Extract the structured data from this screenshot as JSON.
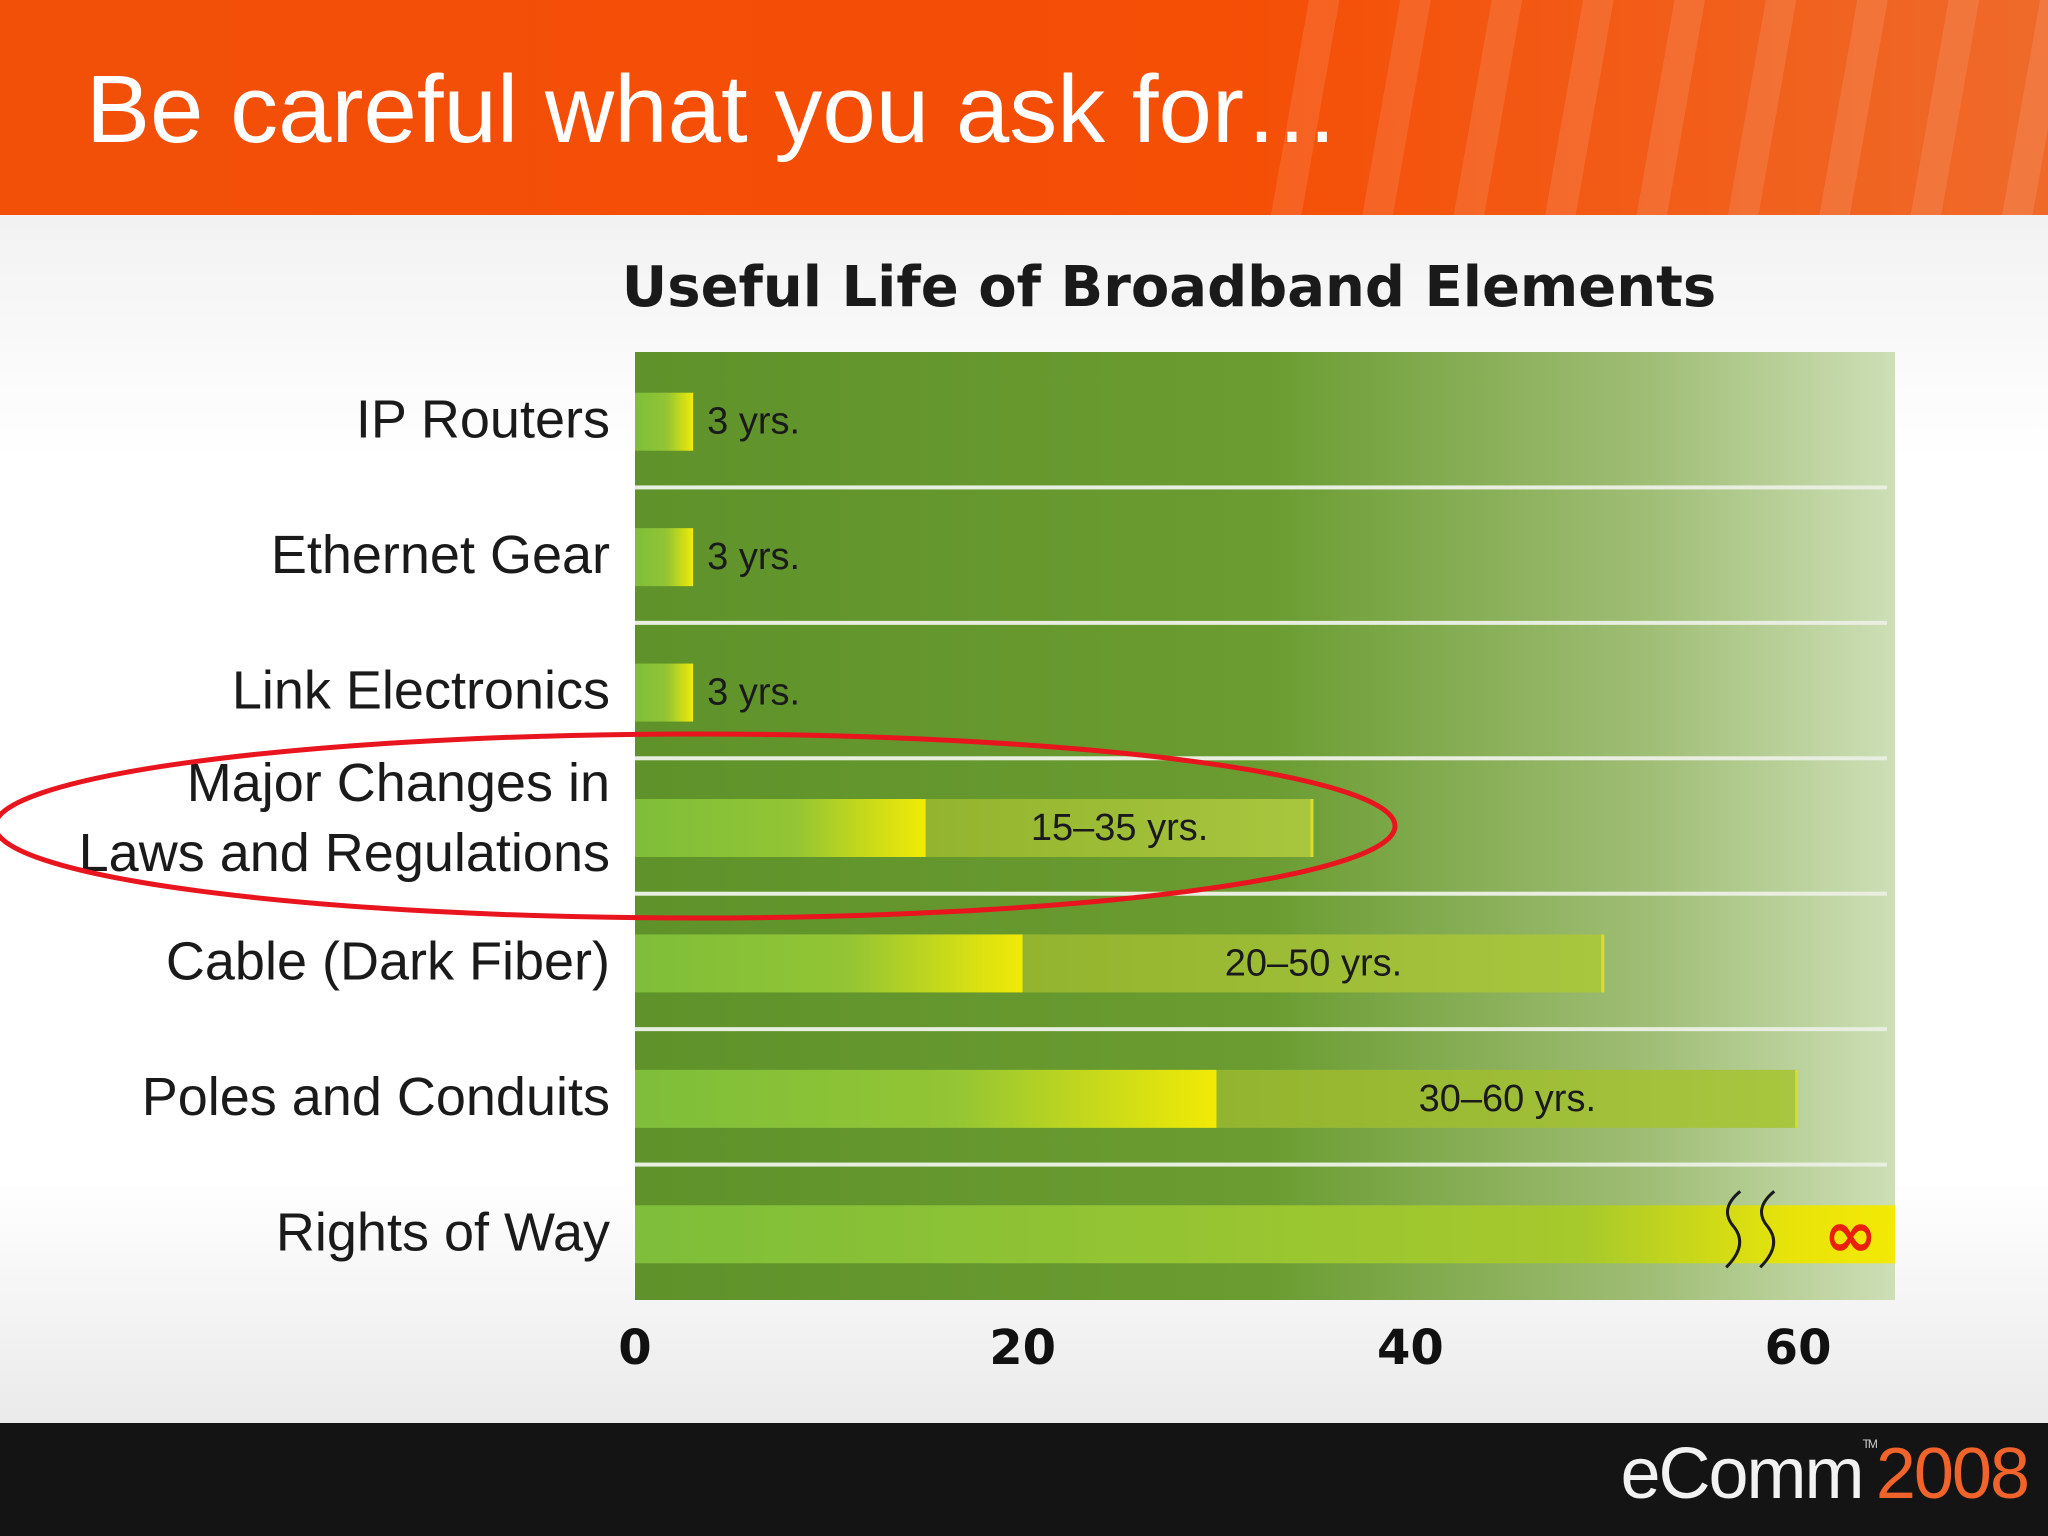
{
  "slide": {
    "title": "Be careful what you ask for…",
    "footer_logo_a": "eComm",
    "footer_logo_tm": "TM",
    "footer_logo_b": "2008"
  },
  "colors": {
    "header_orange": "#f54e05",
    "plot_green": "#64962d",
    "bar_green": "#7fbe3a",
    "bar_yellow": "#f0ea08",
    "range_green": "#99b833",
    "highlight_red": "#e8141e",
    "infinity_red": "#e8200c"
  },
  "chart_data": {
    "type": "bar",
    "orientation": "horizontal",
    "title": "Useful Life of Broadband Elements",
    "xlabel": "",
    "ylabel": "",
    "xlim": [
      0,
      65
    ],
    "xticks": [
      0,
      20,
      40,
      60
    ],
    "grid": false,
    "categories": [
      "IP Routers",
      "Ethernet Gear",
      "Link Electronics",
      "Major Changes in\nLaws and Regulations",
      "Cable (Dark Fiber)",
      "Poles and Conduits",
      "Rights of Way"
    ],
    "values": [
      {
        "min": 3,
        "max": 3,
        "label": "3 yrs."
      },
      {
        "min": 3,
        "max": 3,
        "label": "3 yrs."
      },
      {
        "min": 3,
        "max": 3,
        "label": "3 yrs."
      },
      {
        "min": 15,
        "max": 35,
        "label": "15–35 yrs."
      },
      {
        "min": 20,
        "max": 50,
        "label": "20–50 yrs."
      },
      {
        "min": 30,
        "max": 60,
        "label": "30–60 yrs."
      },
      {
        "min": 65,
        "max": 65,
        "label": "∞",
        "infinite": true
      }
    ],
    "highlighted_category": "Major Changes in\nLaws and Regulations"
  }
}
